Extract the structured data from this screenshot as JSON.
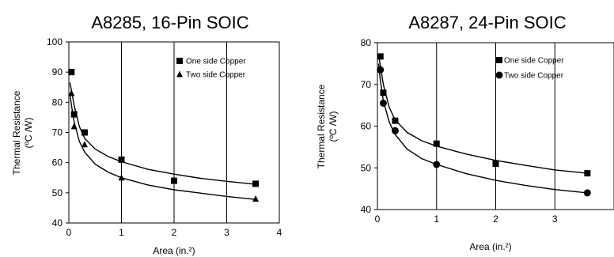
{
  "chart_data": [
    {
      "type": "scatter",
      "title": "A8285, 16-Pin SOIC",
      "xlabel": "Area (in.²)",
      "ylabel": [
        "Thermal Resistance",
        "(ºC /W)"
      ],
      "xlim": [
        0,
        4
      ],
      "ylim": [
        40,
        100
      ],
      "xticks": [
        0,
        1,
        2,
        3,
        4
      ],
      "yticks": [
        40,
        50,
        60,
        70,
        80,
        90,
        100
      ],
      "grid": "vertical",
      "legend_position": "top-right",
      "series": [
        {
          "name": "One side Copper",
          "marker": "square",
          "points": [
            [
              0.05,
              90
            ],
            [
              0.1,
              76
            ],
            [
              0.3,
              70
            ],
            [
              1.0,
              61
            ],
            [
              2.0,
              54
            ],
            [
              3.55,
              53
            ]
          ],
          "fit": [
            [
              0.02,
              86.5
            ],
            [
              0.05,
              84
            ],
            [
              0.1,
              79
            ],
            [
              0.2,
              72
            ],
            [
              0.3,
              68
            ],
            [
              0.5,
              64.5
            ],
            [
              0.75,
              62
            ],
            [
              1.0,
              60.3
            ],
            [
              1.5,
              57.8
            ],
            [
              2.0,
              56.2
            ],
            [
              2.5,
              54.8
            ],
            [
              3.0,
              53.8
            ],
            [
              3.55,
              52.8
            ]
          ]
        },
        {
          "name": "Two side Copper",
          "marker": "triangle",
          "points": [
            [
              0.05,
              83
            ],
            [
              0.1,
              72
            ],
            [
              0.3,
              66
            ],
            [
              1.0,
              55
            ],
            [
              3.55,
              48
            ]
          ],
          "fit": [
            [
              0.02,
              83
            ],
            [
              0.05,
              79
            ],
            [
              0.1,
              73.5
            ],
            [
              0.2,
              67
            ],
            [
              0.3,
              63.5
            ],
            [
              0.5,
              59.5
            ],
            [
              0.75,
              56.8
            ],
            [
              1.0,
              55
            ],
            [
              1.5,
              52.6
            ],
            [
              2.0,
              51
            ],
            [
              2.5,
              49.9
            ],
            [
              3.0,
              48.8
            ],
            [
              3.55,
              47.8
            ]
          ]
        }
      ]
    },
    {
      "type": "scatter",
      "title": "A8287, 24-Pin SOIC",
      "xlabel": "Area (in.²)",
      "ylabel": [
        "Thermal Resistance",
        "(ºC /W)"
      ],
      "xlim": [
        0,
        4
      ],
      "ylim": [
        40,
        80
      ],
      "xticks": [
        0,
        1,
        2,
        3
      ],
      "yticks": [
        40,
        50,
        60,
        70,
        80
      ],
      "grid": "vertical",
      "legend_position": "top-right",
      "series": [
        {
          "name": "One side Copper",
          "marker": "square",
          "points": [
            [
              0.05,
              76.7
            ],
            [
              0.1,
              68
            ],
            [
              0.3,
              61.3
            ],
            [
              1.0,
              55.8
            ],
            [
              2.0,
              51
            ],
            [
              3.55,
              48.7
            ]
          ],
          "fit": [
            [
              0.02,
              77
            ],
            [
              0.05,
              74.5
            ],
            [
              0.1,
              70
            ],
            [
              0.2,
              64.5
            ],
            [
              0.3,
              61.5
            ],
            [
              0.5,
              58.5
            ],
            [
              0.75,
              56.5
            ],
            [
              1.0,
              55.2
            ],
            [
              1.5,
              53.3
            ],
            [
              2.0,
              51.8
            ],
            [
              2.5,
              50.6
            ],
            [
              3.0,
              49.5
            ],
            [
              3.55,
              48.7
            ]
          ]
        },
        {
          "name": "Two side Copper",
          "marker": "circle",
          "points": [
            [
              0.05,
              73.5
            ],
            [
              0.1,
              65.5
            ],
            [
              0.3,
              58.9
            ],
            [
              1.0,
              50.8
            ],
            [
              3.55,
              44
            ]
          ],
          "fit": [
            [
              0.02,
              75
            ],
            [
              0.05,
              71
            ],
            [
              0.1,
              66
            ],
            [
              0.2,
              61
            ],
            [
              0.3,
              58
            ],
            [
              0.5,
              54.5
            ],
            [
              0.75,
              52.2
            ],
            [
              1.0,
              50.8
            ],
            [
              1.5,
              48.6
            ],
            [
              2.0,
              47
            ],
            [
              2.5,
              45.8
            ],
            [
              3.0,
              44.8
            ],
            [
              3.55,
              44
            ]
          ]
        }
      ]
    }
  ]
}
